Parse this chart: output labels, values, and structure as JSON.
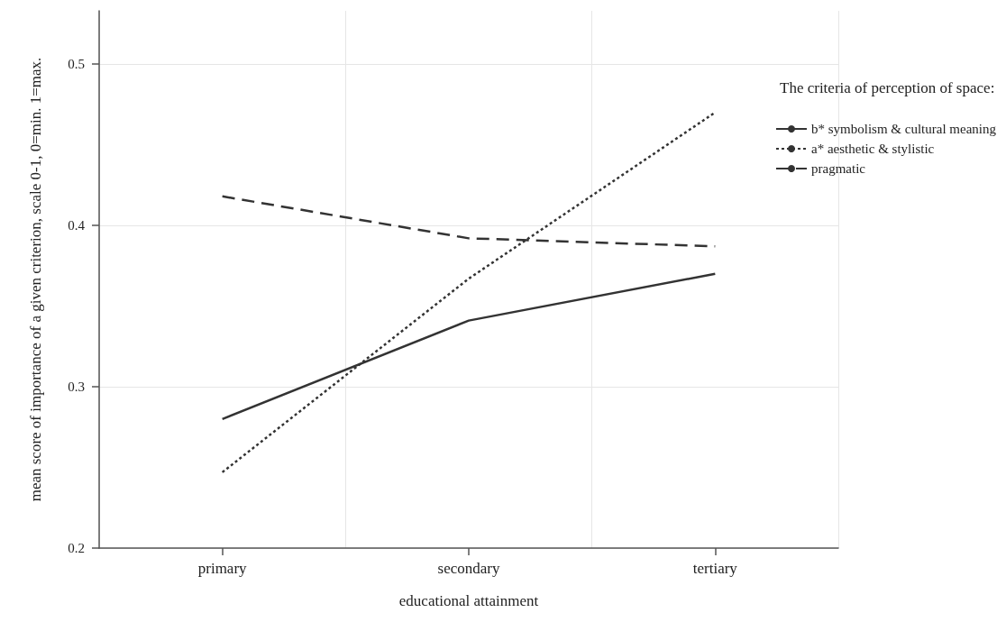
{
  "chart_data": {
    "type": "line",
    "xlabel": "educational attainment",
    "ylabel": "mean score of importance of a given criterion, scale 0-1, 0=min. 1=max.",
    "legend_title": "The criteria of perception of space:",
    "categories": [
      "primary",
      "secondary",
      "tertiary"
    ],
    "series": [
      {
        "name": "b* symbolism & cultural meaning",
        "color": "#333333",
        "line_style": "solid",
        "values": [
          0.28,
          0.341,
          0.37
        ]
      },
      {
        "name": "a* aesthetic & stylistic",
        "color": "#333333",
        "line_style": "dotted",
        "values": [
          0.247,
          0.367,
          0.47
        ]
      },
      {
        "name": "pragmatic",
        "color": "#333333",
        "line_style": "dashed",
        "values": [
          0.418,
          0.392,
          0.387
        ]
      }
    ],
    "ylim": [
      0.2,
      0.533
    ],
    "yticks": [
      0.2,
      0.3,
      0.4,
      0.5
    ],
    "grid": true,
    "legend": "top right",
    "marker": "none"
  }
}
